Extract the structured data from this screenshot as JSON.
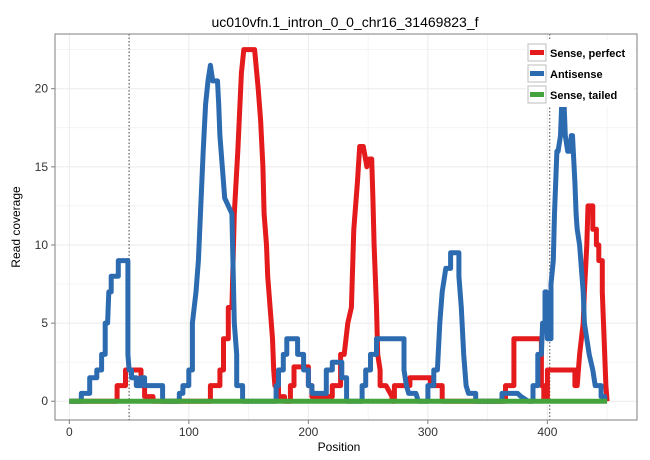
{
  "chart_data": {
    "type": "line",
    "title": "uc010vfn.1_intron_0_0_chr16_31469823_f",
    "xlabel": "Position",
    "ylabel": "Read coverage",
    "xlim": [
      -12,
      475
    ],
    "ylim": [
      -1.2,
      23.5
    ],
    "x_ticks": [
      0,
      100,
      200,
      300,
      400
    ],
    "y_ticks": [
      0,
      5,
      10,
      15,
      20
    ],
    "x_tick_labels": [
      "0",
      "100",
      "200",
      "300",
      "400"
    ],
    "y_tick_labels": [
      "0",
      "5",
      "10",
      "15",
      "20"
    ],
    "vlines": [
      50,
      402
    ],
    "grid": true,
    "legend_position": "top-right",
    "series": [
      {
        "name": "Sense, perfect",
        "color": "#e41a1c",
        "points": [
          [
            0,
            0
          ],
          [
            40,
            0
          ],
          [
            40,
            1
          ],
          [
            47,
            1
          ],
          [
            47,
            2
          ],
          [
            60,
            2
          ],
          [
            60,
            1
          ],
          [
            63,
            1
          ],
          [
            63,
            0.3
          ],
          [
            70,
            0.3
          ],
          [
            70,
            0
          ],
          [
            118,
            0
          ],
          [
            118,
            1
          ],
          [
            126,
            1
          ],
          [
            126,
            2
          ],
          [
            129,
            2
          ],
          [
            129,
            4
          ],
          [
            133,
            4
          ],
          [
            133,
            6
          ],
          [
            136,
            6
          ],
          [
            138,
            12
          ],
          [
            141,
            16
          ],
          [
            144,
            21
          ],
          [
            146,
            22.5
          ],
          [
            155,
            22.5
          ],
          [
            158,
            20
          ],
          [
            160,
            18
          ],
          [
            162,
            15
          ],
          [
            163,
            12
          ],
          [
            165,
            10
          ],
          [
            166,
            8
          ],
          [
            168,
            6
          ],
          [
            170,
            4
          ],
          [
            171,
            2
          ],
          [
            172,
            1
          ],
          [
            175,
            1
          ],
          [
            175,
            0.3
          ],
          [
            180,
            0.3
          ],
          [
            180,
            0
          ],
          [
            185,
            0
          ],
          [
            185,
            1
          ],
          [
            188,
            1
          ],
          [
            188,
            2.2
          ],
          [
            200,
            2.2
          ],
          [
            200,
            1
          ],
          [
            203,
            1
          ],
          [
            203,
            0.3
          ],
          [
            220,
            0.3
          ],
          [
            220,
            1
          ],
          [
            227,
            1
          ],
          [
            227,
            3
          ],
          [
            230,
            3
          ],
          [
            233,
            5
          ],
          [
            236,
            6
          ],
          [
            238,
            11
          ],
          [
            241,
            14
          ],
          [
            243,
            16.3
          ],
          [
            246,
            16.3
          ],
          [
            249,
            15
          ],
          [
            251,
            15.5
          ],
          [
            253,
            15.5
          ],
          [
            254,
            13
          ],
          [
            255,
            10
          ],
          [
            256,
            8
          ],
          [
            257,
            6
          ],
          [
            258,
            3
          ],
          [
            260,
            2
          ],
          [
            260,
            1
          ],
          [
            265,
            1
          ],
          [
            270,
            0.3
          ],
          [
            270,
            0
          ],
          [
            272,
            0
          ],
          [
            272,
            1
          ],
          [
            285,
            1
          ],
          [
            285,
            1.5
          ],
          [
            302,
            1.5
          ],
          [
            302,
            1
          ],
          [
            312,
            1
          ],
          [
            312,
            0
          ],
          [
            365,
            0
          ],
          [
            365,
            1
          ],
          [
            372,
            1
          ],
          [
            372,
            4
          ],
          [
            395,
            4
          ],
          [
            395,
            1
          ],
          [
            397,
            1
          ],
          [
            397,
            0.1
          ],
          [
            400,
            0.1
          ],
          [
            400,
            2
          ],
          [
            423,
            2
          ],
          [
            423,
            1
          ],
          [
            425,
            1
          ],
          [
            427,
            3
          ],
          [
            430,
            5
          ],
          [
            431,
            7
          ],
          [
            433,
            10
          ],
          [
            434,
            12.5
          ],
          [
            438,
            12.5
          ],
          [
            438,
            11
          ],
          [
            441,
            11
          ],
          [
            441,
            10
          ],
          [
            443,
            10
          ],
          [
            443,
            9
          ],
          [
            446,
            9
          ],
          [
            446,
            7
          ],
          [
            447,
            5
          ],
          [
            448,
            3
          ],
          [
            449,
            1
          ],
          [
            450,
            0
          ]
        ]
      },
      {
        "name": "Antisense",
        "color": "#2c6bb0",
        "points": [
          [
            0,
            0
          ],
          [
            10,
            0
          ],
          [
            10,
            0.5
          ],
          [
            17,
            0.5
          ],
          [
            17,
            1.5
          ],
          [
            23,
            1.5
          ],
          [
            23,
            2
          ],
          [
            27,
            2
          ],
          [
            27,
            3
          ],
          [
            30,
            3
          ],
          [
            30,
            5
          ],
          [
            32,
            5
          ],
          [
            33,
            7
          ],
          [
            35,
            7
          ],
          [
            35,
            8
          ],
          [
            41,
            8
          ],
          [
            41,
            9
          ],
          [
            49,
            9
          ],
          [
            49,
            3
          ],
          [
            50,
            2
          ],
          [
            52,
            2
          ],
          [
            52,
            1.5
          ],
          [
            56,
            1.5
          ],
          [
            56,
            1
          ],
          [
            60,
            1
          ],
          [
            60,
            1.5
          ],
          [
            63,
            1.5
          ],
          [
            63,
            1
          ],
          [
            78,
            1
          ],
          [
            78,
            0
          ],
          [
            92,
            0
          ],
          [
            92,
            0.5
          ],
          [
            95,
            0.5
          ],
          [
            95,
            1
          ],
          [
            100,
            1
          ],
          [
            100,
            2
          ],
          [
            103,
            2
          ],
          [
            103,
            5
          ],
          [
            106,
            7
          ],
          [
            108,
            9
          ],
          [
            110,
            12.5
          ],
          [
            112,
            16
          ],
          [
            114,
            19
          ],
          [
            116,
            20.5
          ],
          [
            118,
            21.5
          ],
          [
            120,
            20.5
          ],
          [
            124,
            20.5
          ],
          [
            125,
            19
          ],
          [
            126,
            17
          ],
          [
            128,
            15
          ],
          [
            130,
            13
          ],
          [
            136,
            12
          ],
          [
            138,
            5
          ],
          [
            140,
            3
          ],
          [
            140,
            1
          ],
          [
            145,
            1
          ],
          [
            145,
            0
          ],
          [
            173,
            0
          ],
          [
            173,
            1
          ],
          [
            175,
            1
          ],
          [
            175,
            2
          ],
          [
            179,
            2
          ],
          [
            179,
            3
          ],
          [
            182,
            3
          ],
          [
            182,
            4
          ],
          [
            191,
            4
          ],
          [
            191,
            3
          ],
          [
            196,
            3
          ],
          [
            196,
            2
          ],
          [
            200,
            2
          ],
          [
            200,
            1
          ],
          [
            203,
            1
          ],
          [
            203,
            0.5
          ],
          [
            215,
            0.5
          ],
          [
            215,
            2
          ],
          [
            220,
            2
          ],
          [
            220,
            2.5
          ],
          [
            228,
            2.5
          ],
          [
            228,
            1.5
          ],
          [
            232,
            1.5
          ],
          [
            232,
            0
          ],
          [
            245,
            0
          ],
          [
            245,
            1
          ],
          [
            248,
            1
          ],
          [
            248,
            2
          ],
          [
            252,
            2
          ],
          [
            252,
            3
          ],
          [
            257,
            3
          ],
          [
            257,
            4
          ],
          [
            280,
            4
          ],
          [
            280,
            2
          ],
          [
            282,
            1
          ],
          [
            284,
            0.5
          ],
          [
            290,
            0.5
          ],
          [
            292,
            0
          ],
          [
            300,
            0
          ],
          [
            300,
            1
          ],
          [
            305,
            1
          ],
          [
            305,
            2
          ],
          [
            308,
            2
          ],
          [
            310,
            5
          ],
          [
            312,
            7
          ],
          [
            314,
            8
          ],
          [
            315,
            8.5
          ],
          [
            319,
            8.5
          ],
          [
            319,
            9.5
          ],
          [
            326,
            9.5
          ],
          [
            326,
            8
          ],
          [
            328,
            6
          ],
          [
            330,
            3
          ],
          [
            332,
            1
          ],
          [
            334,
            0.5
          ],
          [
            340,
            0.5
          ],
          [
            340,
            0
          ],
          [
            362,
            0
          ],
          [
            362,
            0.5
          ],
          [
            375,
            0.5
          ],
          [
            378,
            0.3
          ],
          [
            384,
            0
          ],
          [
            388,
            0
          ],
          [
            388,
            1
          ],
          [
            392,
            1
          ],
          [
            392,
            3
          ],
          [
            395,
            3
          ],
          [
            396,
            5
          ],
          [
            398,
            4.5
          ],
          [
            398,
            7
          ],
          [
            399,
            7
          ],
          [
            400,
            4
          ],
          [
            403,
            4
          ],
          [
            403,
            7.5
          ],
          [
            405,
            9
          ],
          [
            406,
            12
          ],
          [
            408,
            16
          ],
          [
            409,
            16
          ],
          [
            411,
            17
          ],
          [
            412,
            19
          ],
          [
            414,
            19
          ],
          [
            415,
            17
          ],
          [
            417,
            16
          ],
          [
            419,
            16
          ],
          [
            420,
            17
          ],
          [
            421,
            17
          ],
          [
            423,
            14
          ],
          [
            424,
            12
          ],
          [
            425,
            11
          ],
          [
            427,
            10
          ],
          [
            428,
            9
          ],
          [
            430,
            7
          ],
          [
            431,
            5
          ],
          [
            433,
            4
          ],
          [
            435,
            3
          ],
          [
            438,
            2
          ],
          [
            440,
            1
          ],
          [
            445,
            1
          ],
          [
            445,
            0.3
          ],
          [
            448,
            0.3
          ],
          [
            448,
            0
          ]
        ]
      },
      {
        "name": "Sense, tailed",
        "color": "#44a33c",
        "points": [
          [
            0,
            0
          ],
          [
            450,
            0
          ]
        ]
      }
    ]
  }
}
